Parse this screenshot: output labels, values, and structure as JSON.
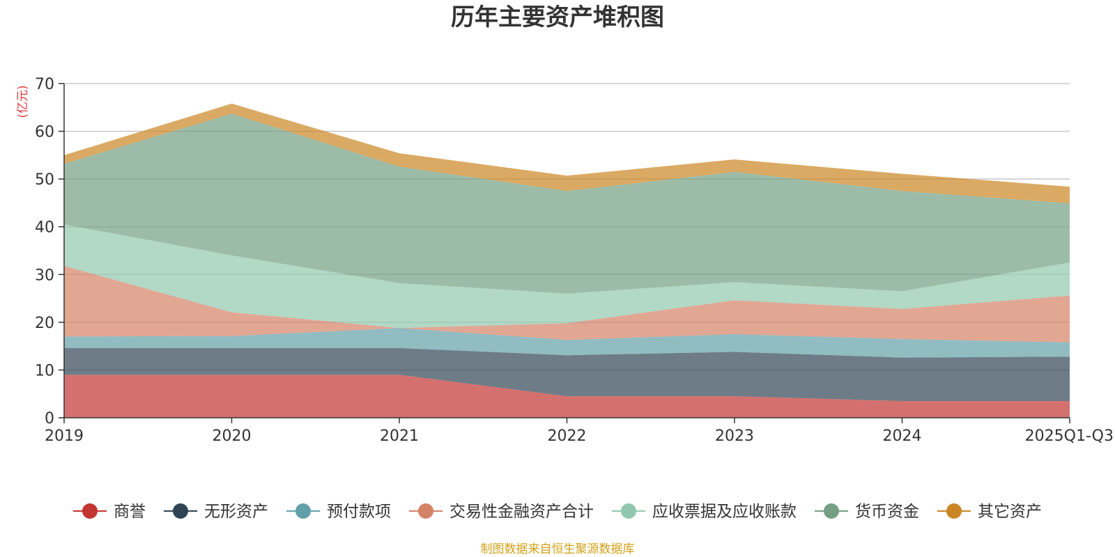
{
  "chart_data": {
    "type": "area",
    "stacked": true,
    "title": "历年主要资产堆积图",
    "unit_label": "(亿元)",
    "source_note": "制图数据来自恒生聚源数据库",
    "categories": [
      "2019",
      "2020",
      "2021",
      "2022",
      "2023",
      "2024",
      "2025Q1-Q3"
    ],
    "ylim": [
      0,
      70
    ],
    "yticks": [
      "0",
      "10",
      "20",
      "30",
      "40",
      "50",
      "60",
      "70"
    ],
    "grid": true,
    "legend_position": "bottom",
    "series": [
      {
        "name": "商誉",
        "color": "#c23531",
        "values": [
          9.0,
          9.0,
          9.0,
          4.5,
          4.5,
          3.5,
          3.5
        ]
      },
      {
        "name": "无形资产",
        "color": "#2f4554",
        "values": [
          5.6,
          5.6,
          5.6,
          8.6,
          9.3,
          9.1,
          9.3
        ]
      },
      {
        "name": "预付款项",
        "color": "#61a0a8",
        "values": [
          2.4,
          2.5,
          4.2,
          3.2,
          3.7,
          3.9,
          3.0
        ]
      },
      {
        "name": "交易性金融资产合计",
        "color": "#d48265",
        "values": [
          14.8,
          5.0,
          0.0,
          3.5,
          7.1,
          6.3,
          9.8
        ]
      },
      {
        "name": "应收票据及应收账款",
        "color": "#91c7ae",
        "values": [
          8.7,
          11.9,
          9.4,
          6.2,
          3.8,
          3.7,
          6.9
        ]
      },
      {
        "name": "货币资金",
        "color": "#749f83",
        "values": [
          12.7,
          29.7,
          24.4,
          21.5,
          23.1,
          21.0,
          12.4
        ]
      },
      {
        "name": "其它资产",
        "color": "#ca8622",
        "values": [
          1.8,
          2.1,
          2.8,
          3.2,
          2.6,
          3.6,
          3.5
        ]
      }
    ]
  }
}
